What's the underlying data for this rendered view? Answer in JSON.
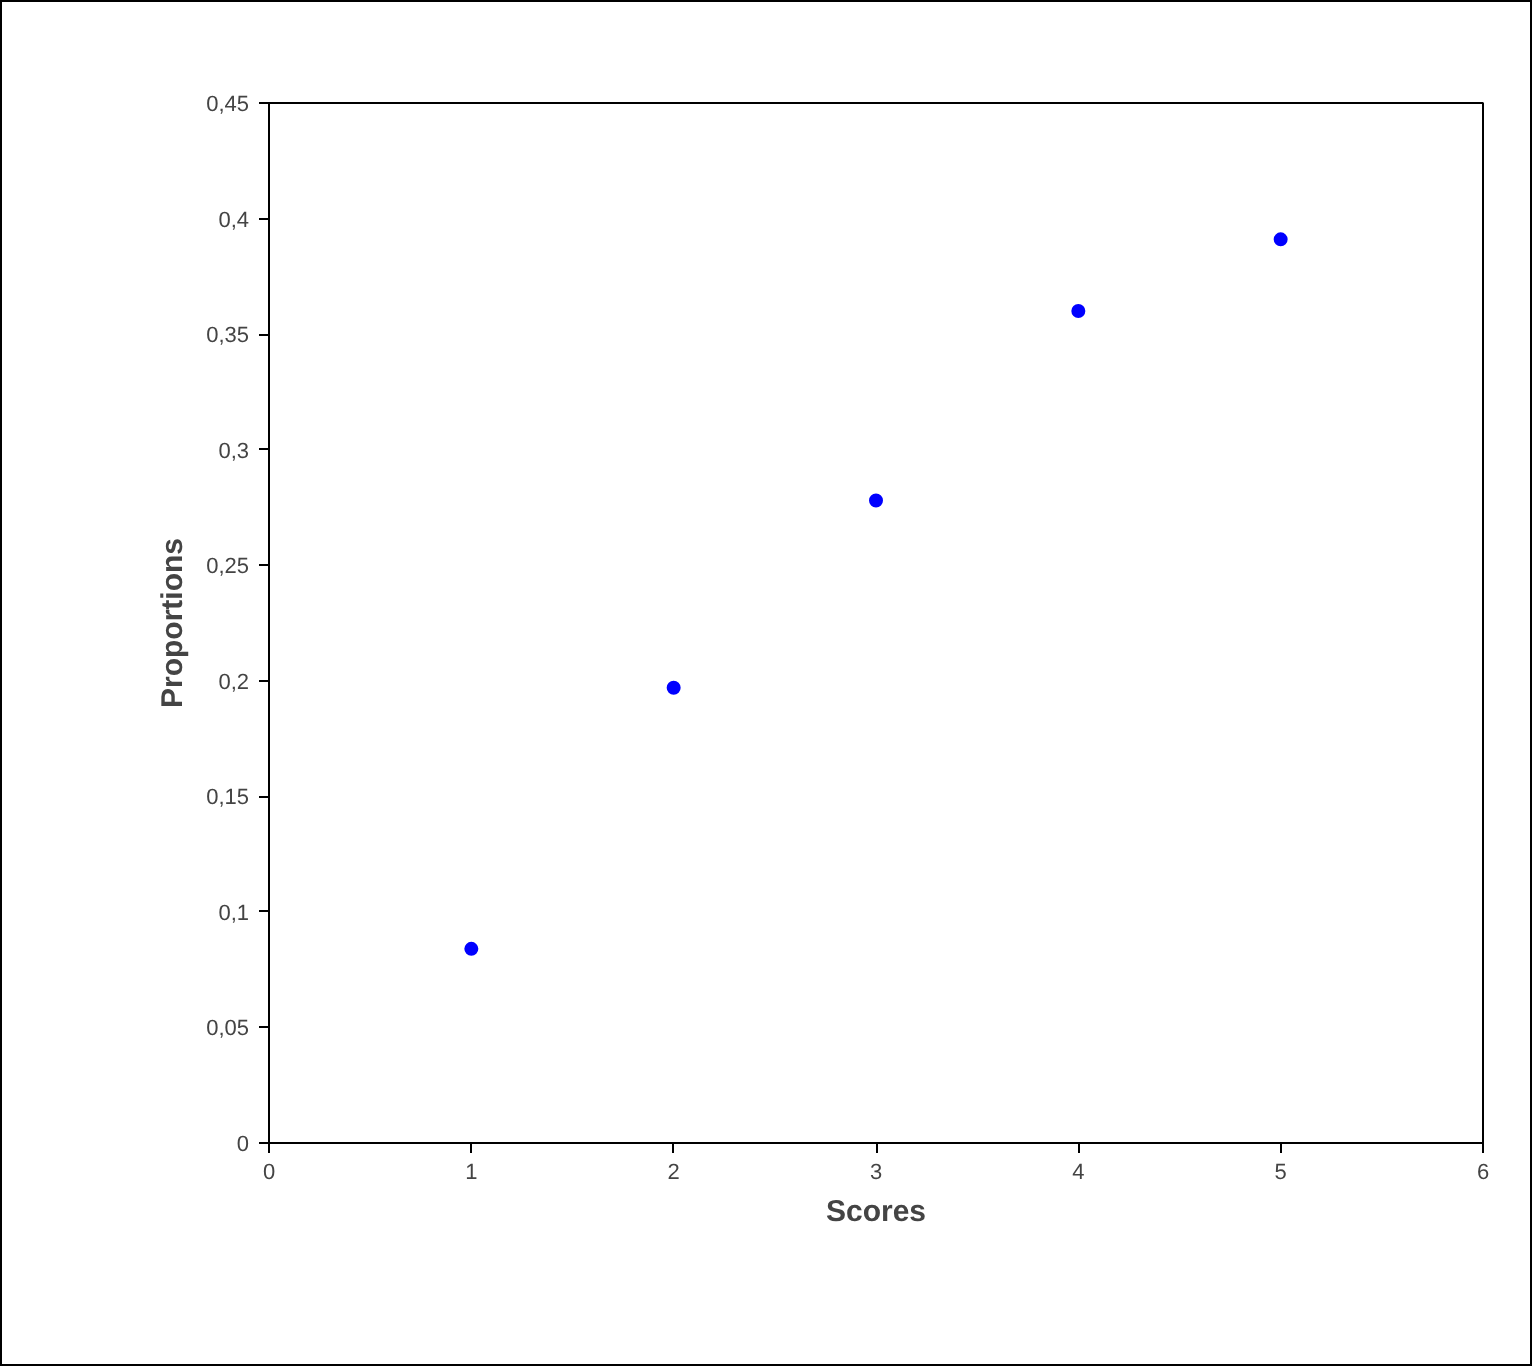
{
  "chart_data": {
    "type": "scatter",
    "xlabel": "Scores",
    "ylabel": "Proportions",
    "x": [
      1,
      2,
      3,
      4,
      5
    ],
    "series": [
      {
        "color": "#0000ff",
        "values": [
          0.084,
          0.197,
          0.278,
          0.36,
          0.391
        ]
      }
    ],
    "xlim": [
      0,
      6
    ],
    "xticks": [
      0,
      1,
      2,
      3,
      4,
      5,
      6
    ],
    "ylim": [
      0,
      0.45
    ],
    "yticks": [
      0,
      {
        "value": 0.05,
        "label": "0,05"
      },
      {
        "value": 0.1,
        "label": "0,1"
      },
      {
        "value": 0.15,
        "label": "0,15"
      },
      {
        "value": 0.2,
        "label": "0,2"
      },
      {
        "value": 0.25,
        "label": "0,25"
      },
      {
        "value": 0.3,
        "label": "0,3"
      },
      {
        "value": 0.35,
        "label": "0,35"
      },
      {
        "value": 0.4,
        "label": "0,4"
      },
      {
        "value": 0.45,
        "label": "0,45"
      }
    ],
    "marker": "circle"
  }
}
